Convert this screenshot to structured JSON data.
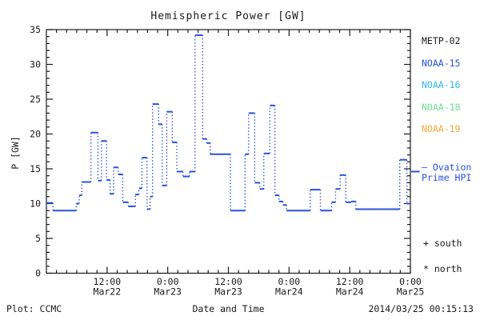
{
  "header": {
    "title": "Hemispheric Power [GW]"
  },
  "legend": {
    "satellites": [
      {
        "label": "METP-02",
        "color": "#1a1a1a"
      },
      {
        "label": "NOAA-15",
        "color": "#2a52d8"
      },
      {
        "label": "NOAA-16",
        "color": "#35b6ee"
      },
      {
        "label": "NOAA-18",
        "color": "#6ce08f"
      },
      {
        "label": "NOAA-19",
        "color": "#f7a833"
      }
    ],
    "ovation": {
      "line1": "— Ovation",
      "line2": "Prime HPI",
      "color": "#2a52d8"
    },
    "hemisphere_markers": {
      "south": "+ south",
      "north": "* north"
    }
  },
  "footer": {
    "plot_credit": "Plot: CCMC",
    "xaxis_title": "Date and Time",
    "timestamp": "2014/03/25 00:15:13"
  },
  "chart_data": {
    "type": "line",
    "subtype": "step-post, solid horizontal levels with dotted vertical connectors",
    "title": "Hemispheric Power [GW]",
    "xlabel": "Date and Time",
    "ylabel": "P [GW]",
    "ylim": [
      0,
      35
    ],
    "y_ticks": [
      0,
      5,
      10,
      15,
      20,
      25,
      30,
      35
    ],
    "y_minor_step_gw": 1,
    "x_range_hours": 72,
    "x_start_label": "Mar22 00:00",
    "x_minor_step_hours": 2,
    "x_ticks": [
      {
        "hour": 12,
        "time": "12:00",
        "date": "Mar22"
      },
      {
        "hour": 24,
        "time": "0:00",
        "date": "Mar23"
      },
      {
        "hour": 36,
        "time": "12:00",
        "date": "Mar23"
      },
      {
        "hour": 48,
        "time": "0:00",
        "date": "Mar24"
      },
      {
        "hour": 60,
        "time": "12:00",
        "date": "Mar24"
      },
      {
        "hour": 72,
        "time": "0:00",
        "date": "Mar25"
      }
    ],
    "grid": false,
    "legend_position": "right, outside plot box",
    "line_color": "#2a52d8",
    "axis_color": "#1a1a1a",
    "ovation_marker_gw": 14.6,
    "series": [
      {
        "name": "Ovation Prime HPI",
        "unit": "GW",
        "points_format": "[hours since Mar22 00:00, power GW] step levels",
        "points": [
          [
            0.0,
            10.1
          ],
          [
            1.3,
            9.0
          ],
          [
            5.9,
            10.0
          ],
          [
            6.5,
            11.2
          ],
          [
            7.0,
            13.1
          ],
          [
            8.8,
            20.2
          ],
          [
            10.2,
            13.3
          ],
          [
            10.9,
            19.0
          ],
          [
            11.9,
            13.4
          ],
          [
            12.6,
            11.4
          ],
          [
            13.3,
            15.2
          ],
          [
            14.2,
            14.2
          ],
          [
            15.1,
            10.2
          ],
          [
            16.2,
            9.6
          ],
          [
            17.6,
            11.3
          ],
          [
            18.3,
            12.2
          ],
          [
            18.9,
            16.6
          ],
          [
            19.9,
            9.2
          ],
          [
            20.5,
            11.0
          ],
          [
            21.0,
            24.3
          ],
          [
            22.2,
            21.4
          ],
          [
            22.9,
            12.6
          ],
          [
            23.8,
            23.2
          ],
          [
            24.9,
            18.8
          ],
          [
            25.8,
            14.6
          ],
          [
            27.0,
            13.9
          ],
          [
            28.3,
            14.6
          ],
          [
            29.4,
            34.2
          ],
          [
            30.9,
            19.3
          ],
          [
            31.7,
            18.7
          ],
          [
            32.4,
            17.1
          ],
          [
            36.4,
            9.0
          ],
          [
            39.3,
            17.1
          ],
          [
            40.0,
            23.0
          ],
          [
            41.2,
            13.0
          ],
          [
            42.2,
            12.1
          ],
          [
            43.0,
            17.2
          ],
          [
            44.2,
            24.1
          ],
          [
            45.2,
            11.2
          ],
          [
            46.0,
            10.3
          ],
          [
            46.8,
            9.8
          ],
          [
            47.5,
            9.0
          ],
          [
            52.2,
            12.0
          ],
          [
            54.2,
            9.0
          ],
          [
            56.4,
            10.2
          ],
          [
            57.2,
            12.1
          ],
          [
            58.1,
            14.1
          ],
          [
            59.2,
            10.2
          ],
          [
            60.3,
            10.3
          ],
          [
            61.2,
            9.2
          ],
          [
            69.9,
            16.3
          ],
          [
            71.3,
            10.0
          ]
        ]
      }
    ]
  }
}
